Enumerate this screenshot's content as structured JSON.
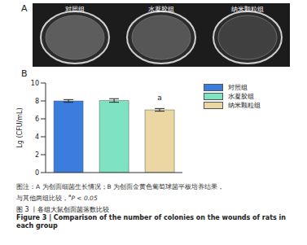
{
  "panel_a": {
    "label": "A",
    "groups": [
      "对照组",
      "水凝胶组",
      "纳米颗粒组"
    ]
  },
  "panel_b_label": "B",
  "chart_data": {
    "type": "bar",
    "categories": [
      "对照组",
      "水凝胶组",
      "纳米颗粒组"
    ],
    "values": [
      8.0,
      8.05,
      7.0
    ],
    "errors": [
      0.15,
      0.2,
      0.15
    ],
    "annotations": [
      null,
      null,
      "a"
    ],
    "colors": [
      "#3b7ddd",
      "#7fe3c3",
      "#ead7a2"
    ],
    "y_label": "Lg (CFU/mL)",
    "ylim": [
      0,
      10
    ],
    "yticks": [
      0,
      2,
      4,
      6,
      8,
      10
    ],
    "tick_labels": "y",
    "legend": "upper right"
  },
  "caption": {
    "note_line1": "图注：A 为创面细菌生长情况；B 为创面金黄色葡萄球菌平板培养结果，",
    "note_line2": "与其他两组比较，",
    "note_sup": "a",
    "note_end": "P < 0.05",
    "title_zh": "图 3 丨各组大鼠创面菌落数比较",
    "title_en": "Figure 3 | Comparison of the number of colonies on the wounds of rats in each group"
  }
}
